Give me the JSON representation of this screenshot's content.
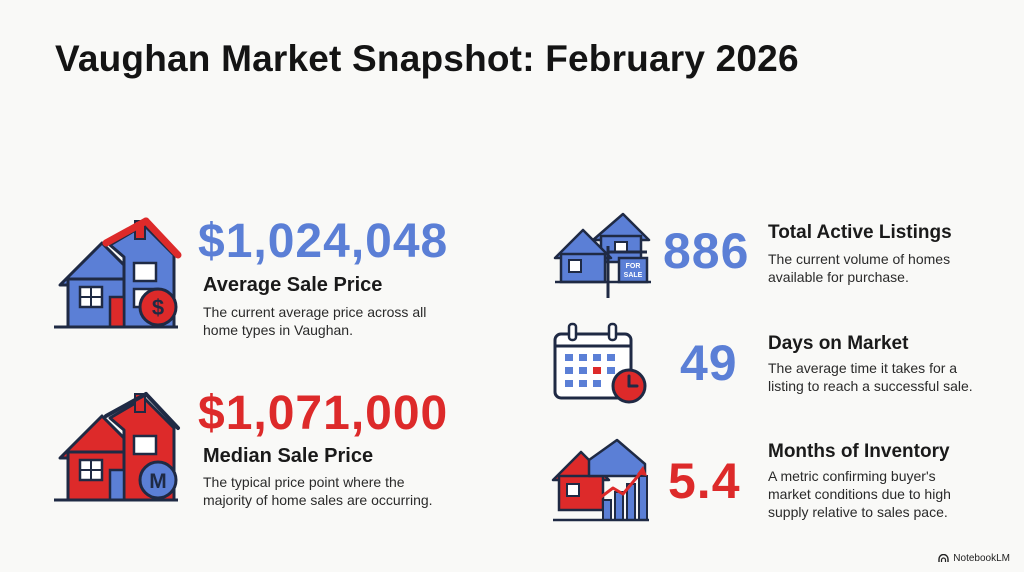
{
  "title": "Vaughan Market Snapshot: February 2026",
  "colors": {
    "blue": "#5b7fd6",
    "red": "#dd2a2a",
    "navy": "#1f2a44"
  },
  "left_metrics": [
    {
      "value": "$1,024,048",
      "label": "Average Sale Price",
      "desc_line1": "The current average price across all",
      "desc_line2": "home types in Vaughan.",
      "icon": "house-dollar-icon",
      "icon_glyph": "$"
    },
    {
      "value": "$1,071,000",
      "label": "Median Sale Price",
      "desc_line1": "The typical price point where the",
      "desc_line2": "majority of home sales are occurring.",
      "icon": "house-median-icon",
      "icon_glyph": "M"
    }
  ],
  "right_metrics": [
    {
      "value": "886",
      "label": "Total Active Listings",
      "desc_line1": "The current volume of homes",
      "desc_line2": "available for purchase.",
      "desc_line3": "",
      "icon": "for-sale-houses-icon",
      "sign_line1": "FOR",
      "sign_line2": "SALE"
    },
    {
      "value": "49",
      "label": "Days on Market",
      "desc_line1": "The average time it takes for a",
      "desc_line2": "listing to reach a successful sale.",
      "desc_line3": "",
      "icon": "calendar-clock-icon"
    },
    {
      "value": "5.4",
      "label": "Months of Inventory",
      "desc_line1": "A metric confirming buyer's",
      "desc_line2": "market conditions due to high",
      "desc_line3": "supply relative to sales pace.",
      "icon": "house-chart-icon"
    }
  ],
  "footer": {
    "brand": "NotebookLM",
    "icon": "notebooklm-logo-icon"
  }
}
